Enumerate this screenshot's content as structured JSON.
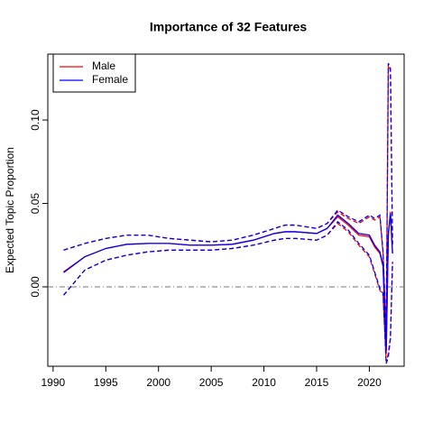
{
  "chart_data": {
    "type": "line",
    "title": "Importance of 32 Features",
    "ylabel": "Expected Topic Proportion",
    "x": [
      1991,
      1993,
      1995,
      1997,
      1999,
      2001,
      2003,
      2005,
      2007,
      2009,
      2011,
      2012,
      2013,
      2015,
      2016,
      2017,
      2018,
      2019,
      2020,
      2020.5,
      2021,
      2021.3,
      2021.6,
      2021.8,
      2022,
      2022.2
    ],
    "series": [
      {
        "name": "Male",
        "color": "#ff0000",
        "values": [
          0.009,
          0.018,
          0.023,
          0.0255,
          0.026,
          0.026,
          0.025,
          0.025,
          0.0255,
          0.028,
          0.032,
          0.033,
          0.033,
          0.032,
          0.035,
          0.042,
          0.037,
          0.031,
          0.03,
          0.024,
          0.02,
          0.012,
          -0.04,
          0.03,
          0.045,
          0.02
        ],
        "lower": [
          -0.005,
          0.01,
          0.016,
          0.019,
          0.021,
          0.022,
          0.022,
          0.022,
          0.023,
          0.025,
          0.028,
          0.029,
          0.029,
          0.028,
          0.031,
          0.038,
          0.033,
          0.025,
          0.018,
          0.008,
          -0.002,
          -0.005,
          -0.045,
          -0.04,
          -0.03,
          0.015
        ],
        "upper": [
          0.022,
          0.026,
          0.029,
          0.031,
          0.031,
          0.029,
          0.028,
          0.027,
          0.028,
          0.031,
          0.035,
          0.037,
          0.037,
          0.035,
          0.038,
          0.045,
          0.041,
          0.038,
          0.042,
          0.04,
          0.042,
          0.02,
          -0.03,
          0.133,
          0.13,
          0.025
        ]
      },
      {
        "name": "Female",
        "color": "#0000ff",
        "values": [
          0.0085,
          0.018,
          0.023,
          0.0255,
          0.026,
          0.026,
          0.025,
          0.025,
          0.0255,
          0.028,
          0.032,
          0.033,
          0.033,
          0.032,
          0.035,
          0.043,
          0.038,
          0.032,
          0.031,
          0.025,
          0.021,
          0.013,
          -0.038,
          0.032,
          0.044,
          0.02
        ],
        "lower": [
          -0.005,
          0.01,
          0.016,
          0.019,
          0.021,
          0.022,
          0.022,
          0.022,
          0.023,
          0.025,
          0.028,
          0.029,
          0.029,
          0.028,
          0.031,
          0.039,
          0.034,
          0.026,
          0.019,
          0.009,
          -0.001,
          -0.004,
          -0.046,
          -0.042,
          -0.031,
          0.015
        ],
        "upper": [
          0.022,
          0.026,
          0.029,
          0.031,
          0.031,
          0.029,
          0.028,
          0.027,
          0.028,
          0.031,
          0.035,
          0.037,
          0.037,
          0.035,
          0.038,
          0.046,
          0.042,
          0.039,
          0.043,
          0.041,
          0.043,
          0.021,
          -0.028,
          0.134,
          0.131,
          0.026
        ]
      }
    ],
    "xlim": [
      1989.5,
      2023.3
    ],
    "xticks": [
      1990,
      1995,
      2000,
      2005,
      2010,
      2015,
      2020
    ],
    "ylim": [
      -0.0476,
      0.1395
    ],
    "yticks": [
      {
        "value": 0,
        "label": "0.00"
      },
      {
        "value": 0.05,
        "label": "0.05"
      },
      {
        "value": 0.1,
        "label": "0.10"
      }
    ],
    "hline": 0,
    "legend": "topleft"
  }
}
